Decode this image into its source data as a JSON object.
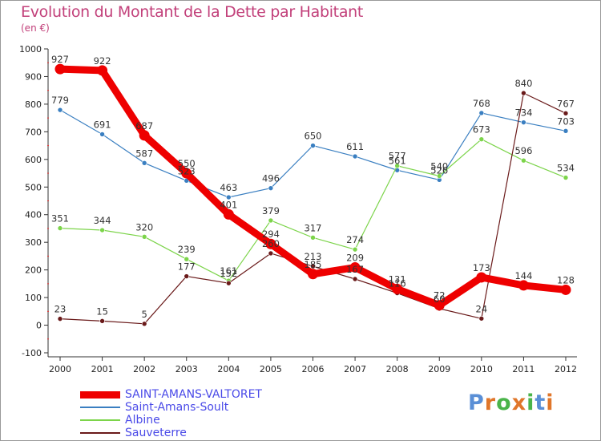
{
  "title": "Evolution du Montant de la Dette par Habitant",
  "subtitle": "(en €)",
  "brand": "Proxiti",
  "brand_colors": [
    "#5a8fd6",
    "#e0762a",
    "#4ab44a",
    "#e0762a",
    "#4ab44a",
    "#5a8fd6",
    "#e0762a"
  ],
  "chart_data": {
    "type": "line",
    "title": "Evolution du Montant de la Dette par Habitant",
    "subtitle": "(en €)",
    "xlabel": "",
    "ylabel": "",
    "x": [
      "2000",
      "2001",
      "2002",
      "2003",
      "2004",
      "2005",
      "2006",
      "2007",
      "2008",
      "2009",
      "2010",
      "2011",
      "2012"
    ],
    "ylim": [
      -100,
      1000
    ],
    "yticks": [
      "-100",
      "0",
      "100",
      "200",
      "300",
      "400",
      "500",
      "600",
      "700",
      "800",
      "900",
      "1000"
    ],
    "grid": false,
    "legend_position": "bottom-left",
    "series": [
      {
        "name": "SAINT-AMANS-VALTORET",
        "color": "#ee0000",
        "emphasis": true,
        "values": [
          927,
          922,
          687,
          550,
          401,
          294,
          185,
          209,
          131,
          72,
          173,
          144,
          128
        ]
      },
      {
        "name": "Saint-Amans-Soult",
        "color": "#3a7fc1",
        "emphasis": false,
        "values": [
          779,
          691,
          587,
          523,
          463,
          496,
          650,
          611,
          561,
          526,
          768,
          734,
          703
        ]
      },
      {
        "name": "Albine",
        "color": "#7cd44a",
        "emphasis": false,
        "values": [
          351,
          344,
          320,
          239,
          161,
          379,
          317,
          274,
          577,
          540,
          673,
          596,
          534
        ]
      },
      {
        "name": "Sauveterre",
        "color": "#6a1a1a",
        "emphasis": false,
        "values": [
          23,
          15,
          5,
          177,
          152,
          260,
          213,
          167,
          116,
          60,
          24,
          840,
          767
        ]
      }
    ]
  }
}
